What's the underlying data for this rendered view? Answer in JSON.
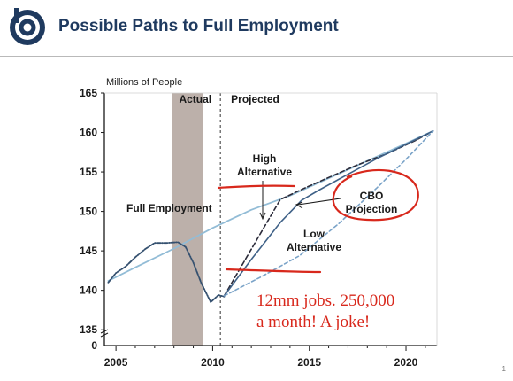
{
  "slide": {
    "title": "Possible Paths to Full Employment",
    "page_number": "1"
  },
  "colors": {
    "title": "#1f3a5f",
    "logo": "#1f3a5f",
    "recession_band": "#bcb0aa",
    "full_employment": "#92bcd6",
    "actual": "#34506f",
    "high_alt": "#2b2b3a",
    "cbo": "#3f6187",
    "low_alt": "#7aa3c8",
    "annotation": "#d8281c"
  },
  "chart_data": {
    "type": "line",
    "ylabel": "Millions of People",
    "xlim": [
      2004.4,
      2021.6
    ],
    "ylim": [
      133,
      165
    ],
    "y_zero_label": "0",
    "x_ticks": [
      2005,
      2010,
      2015,
      2020
    ],
    "y_ticks": [
      135,
      140,
      145,
      150,
      155,
      160,
      165
    ],
    "recession_shaded": [
      2007.9,
      2009.5
    ],
    "projection_start": 2010.4,
    "region_labels": [
      "Actual",
      "Projected"
    ],
    "series": [
      {
        "name": "Full Employment",
        "style": "solid",
        "points": [
          [
            2004.6,
            141.2
          ],
          [
            2006,
            142.9
          ],
          [
            2008,
            145.3
          ],
          [
            2010,
            147.9
          ],
          [
            2012,
            150.2
          ],
          [
            2014,
            152.0
          ],
          [
            2016,
            154.2
          ],
          [
            2018,
            156.4
          ],
          [
            2020,
            158.6
          ],
          [
            2021.4,
            160.2
          ]
        ]
      },
      {
        "name": "Actual",
        "style": "dashed-dotted",
        "points": [
          [
            2004.6,
            141.0
          ],
          [
            2005,
            142.2
          ],
          [
            2005.5,
            143.0
          ],
          [
            2006,
            144.2
          ],
          [
            2006.5,
            145.2
          ],
          [
            2007,
            146.0
          ],
          [
            2007.6,
            146.0
          ],
          [
            2008.2,
            146.1
          ],
          [
            2008.6,
            145.5
          ],
          [
            2009,
            143.5
          ],
          [
            2009.4,
            141.0
          ],
          [
            2009.9,
            138.5
          ],
          [
            2010.3,
            139.4
          ],
          [
            2010.6,
            139.2
          ]
        ]
      },
      {
        "name": "High Alternative",
        "style": "dashed",
        "points": [
          [
            2010.6,
            139.3
          ],
          [
            2012,
            145.2
          ],
          [
            2013.5,
            151.5
          ],
          [
            2014.7,
            152.9
          ],
          [
            2016,
            154.3
          ],
          [
            2017.5,
            155.9
          ],
          [
            2019,
            157.3
          ],
          [
            2020.5,
            159.0
          ],
          [
            2021.4,
            160.2
          ]
        ]
      },
      {
        "name": "CBO Projection",
        "style": "solid",
        "points": [
          [
            2010.6,
            139.3
          ],
          [
            2012,
            143.9
          ],
          [
            2013.5,
            148.6
          ],
          [
            2014.6,
            151.4
          ],
          [
            2015.5,
            152.7
          ],
          [
            2017,
            154.7
          ],
          [
            2018.5,
            156.7
          ],
          [
            2020,
            158.5
          ],
          [
            2021.4,
            160.2
          ]
        ]
      },
      {
        "name": "Low Alternative",
        "style": "dashed",
        "points": [
          [
            2010.6,
            139.3
          ],
          [
            2012.5,
            141.7
          ],
          [
            2014.5,
            144.4
          ],
          [
            2016.5,
            148.4
          ],
          [
            2018.5,
            153.0
          ],
          [
            2020,
            156.6
          ],
          [
            2021.4,
            160.2
          ]
        ]
      }
    ],
    "labels": {
      "full_employment": "Full Employment",
      "high_alt_line1": "High",
      "high_alt_line2": "Alternative",
      "cbo_line1": "CBO",
      "cbo_line2": "Projection",
      "low_alt_line1": "Low",
      "low_alt_line2": "Alternative"
    },
    "annotations": {
      "line1": "12mm jobs. 250,000",
      "line2": "a month! A joke!"
    }
  }
}
